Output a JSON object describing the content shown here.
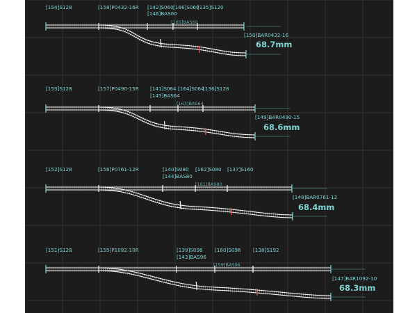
{
  "colors": {
    "background": "#1c1c1c",
    "grid": "#3a3a3a",
    "label": "#7fd3d3",
    "rail": "#ffffff",
    "tie": "#888888",
    "joint_marker": "#e05050"
  },
  "rows": [
    {
      "labels": [
        "[154]S128",
        "[158]P0432-16R",
        "[142]S060",
        "[166]S060",
        "[135]S120",
        "[146]BAS60",
        "[150]BAR0432-16"
      ],
      "dimension": "[165]BAS60",
      "offset": "68.7mm"
    },
    {
      "labels": [
        "[153]S128",
        "[157]P0490-15R",
        "[141]S064",
        "[164]S064",
        "[136]S128",
        "[145]BAS64",
        "[149]BAR0490-15"
      ],
      "dimension": "[163]BAS64",
      "offset": "68.6mm"
    },
    {
      "labels": [
        "[152]S128",
        "[156]P0761-12R",
        "[140]S080",
        "[162]S080",
        "[137]S160",
        "[144]BAS80",
        "[148]BAR0761-12"
      ],
      "dimension": "[161]BAS80",
      "offset": "68.4mm"
    },
    {
      "labels": [
        "[151]S128",
        "[155]P1092-10R",
        "[139]S096",
        "[160]S096",
        "[138]S192",
        "[143]BAS96",
        "[147]BAR1092-10"
      ],
      "dimension": "[159]BAS96",
      "offset": "68.3mm"
    }
  ]
}
